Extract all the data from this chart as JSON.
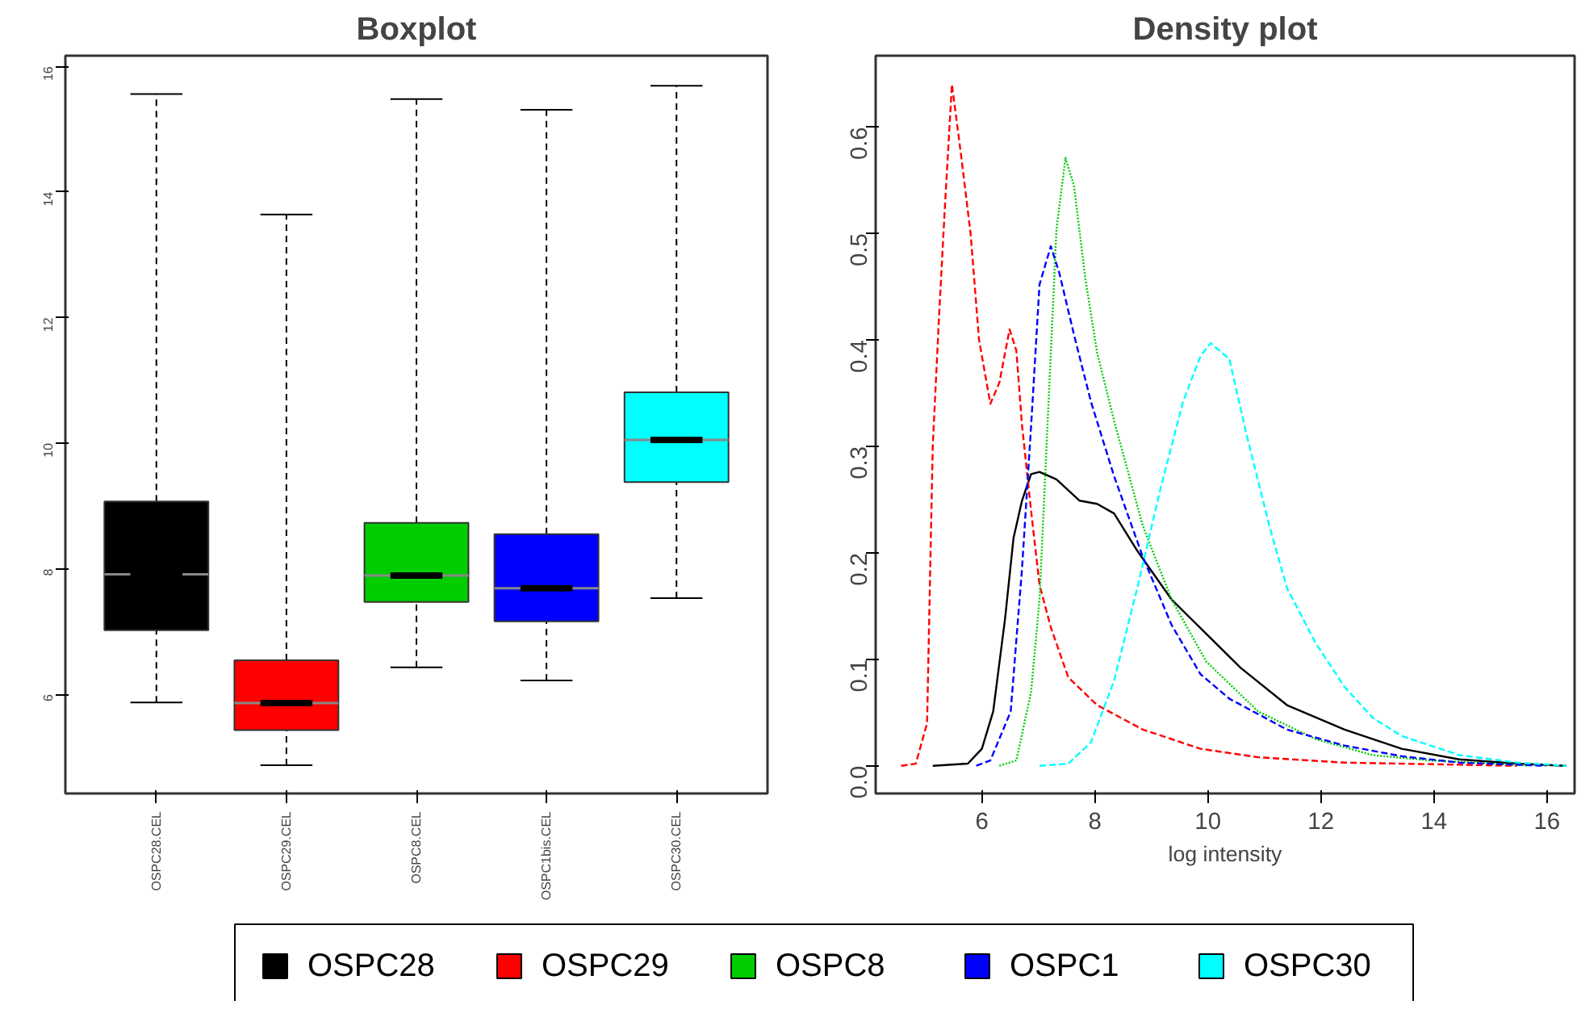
{
  "chart_data": [
    {
      "type": "box",
      "title": "Boxplot",
      "categories": [
        "OSPC28.CEL",
        "OSPC29.CEL",
        "OSPC8.CEL",
        "OSPC1bis.CEL",
        "OSPC30.CEL"
      ],
      "colors": [
        "#000000",
        "#ff0000",
        "#00cd00",
        "#0000ff",
        "#00ffff"
      ],
      "boxes": [
        {
          "low": 5.87,
          "q1": 7.02,
          "median": 7.91,
          "q3": 9.07,
          "high": 15.56
        },
        {
          "low": 4.87,
          "q1": 5.43,
          "median": 5.86,
          "q3": 6.54,
          "high": 13.64
        },
        {
          "low": 6.43,
          "q1": 7.47,
          "median": 7.89,
          "q3": 8.73,
          "high": 15.48
        },
        {
          "low": 6.22,
          "q1": 7.16,
          "median": 7.69,
          "q3": 8.55,
          "high": 15.31
        },
        {
          "low": 7.53,
          "q1": 9.38,
          "median": 10.05,
          "q3": 10.81,
          "high": 15.69
        }
      ],
      "ylim": [
        4.42,
        16.17
      ],
      "yticks": [
        6,
        8,
        10,
        12,
        14,
        16
      ],
      "grid": false
    },
    {
      "type": "line",
      "title": "Density plot",
      "xlabel": "log intensity",
      "xlim": [
        4.12,
        16.49
      ],
      "xticks": [
        6,
        8,
        10,
        12,
        14,
        16
      ],
      "ylim": [
        -0.026,
        0.667
      ],
      "yticks": [
        {
          "value": 0,
          "label": "0.0"
        },
        0.1,
        0.2,
        0.3,
        0.4,
        0.5,
        0.6
      ],
      "grid": false,
      "legend": "bottom",
      "series": [
        {
          "name": "OSPC28",
          "color": "#000000",
          "line_style": "solid",
          "x": [
            5.13,
            5.75,
            6.0,
            6.2,
            6.41,
            6.56,
            6.71,
            6.87,
            7.02,
            7.32,
            7.73,
            8.04,
            8.34,
            8.75,
            9.36,
            9.97,
            10.58,
            11.4,
            12.42,
            13.43,
            14.45,
            15.47,
            16.34
          ],
          "values": [
            0,
            0.002,
            0.016,
            0.051,
            0.138,
            0.214,
            0.249,
            0.274,
            0.276,
            0.269,
            0.249,
            0.246,
            0.237,
            0.202,
            0.156,
            0.124,
            0.092,
            0.057,
            0.034,
            0.016,
            0.006,
            0.002,
            0
          ]
        },
        {
          "name": "OSPC29",
          "color": "#ff0000",
          "line_style": "dashed",
          "x": [
            4.57,
            4.83,
            5.03,
            5.13,
            5.24,
            5.34,
            5.47,
            5.64,
            5.8,
            5.95,
            6.15,
            6.31,
            6.49,
            6.61,
            6.71,
            6.87,
            7.02,
            7.22,
            7.53,
            8.04,
            8.85,
            9.87,
            10.89,
            12.42,
            14.45,
            15.47
          ],
          "values": [
            0,
            0.002,
            0.04,
            0.3,
            0.42,
            0.52,
            0.64,
            0.57,
            0.5,
            0.4,
            0.34,
            0.36,
            0.41,
            0.39,
            0.32,
            0.24,
            0.17,
            0.13,
            0.083,
            0.057,
            0.034,
            0.016,
            0.008,
            0.003,
            0.001,
            0
          ]
        },
        {
          "name": "OSPC8",
          "color": "#00cd00",
          "line_style": "dotted",
          "x": [
            6.31,
            6.61,
            6.87,
            7.02,
            7.17,
            7.32,
            7.48,
            7.63,
            7.83,
            8.04,
            8.34,
            8.85,
            9.36,
            9.97,
            10.89,
            11.91,
            12.92,
            13.94,
            15.47,
            15.67
          ],
          "values": [
            0,
            0.005,
            0.069,
            0.156,
            0.33,
            0.504,
            0.571,
            0.545,
            0.458,
            0.388,
            0.324,
            0.225,
            0.156,
            0.098,
            0.051,
            0.025,
            0.01,
            0.005,
            0.001,
            0
          ]
        },
        {
          "name": "OSPC1",
          "color": "#0000ff",
          "line_style": "dashed",
          "x": [
            5.9,
            6.15,
            6.51,
            6.71,
            6.87,
            7.02,
            7.22,
            7.37,
            7.63,
            7.93,
            8.34,
            8.85,
            9.36,
            9.87,
            10.38,
            11.4,
            12.42,
            13.43,
            14.45,
            15.98
          ],
          "values": [
            0,
            0.005,
            0.051,
            0.185,
            0.318,
            0.452,
            0.488,
            0.463,
            0.405,
            0.342,
            0.272,
            0.196,
            0.132,
            0.086,
            0.063,
            0.034,
            0.019,
            0.009,
            0.003,
            0
          ]
        },
        {
          "name": "OSPC30",
          "color": "#00ffff",
          "line_style": "dashed",
          "x": [
            7.02,
            7.53,
            7.93,
            8.34,
            8.75,
            9.16,
            9.56,
            9.87,
            10.05,
            10.38,
            10.68,
            11.09,
            11.4,
            11.91,
            12.42,
            12.92,
            13.43,
            14.45,
            15.47,
            16.34
          ],
          "values": [
            0,
            0.002,
            0.022,
            0.08,
            0.167,
            0.26,
            0.342,
            0.385,
            0.397,
            0.382,
            0.312,
            0.225,
            0.167,
            0.115,
            0.074,
            0.045,
            0.028,
            0.01,
            0.003,
            0
          ]
        }
      ]
    }
  ]
}
